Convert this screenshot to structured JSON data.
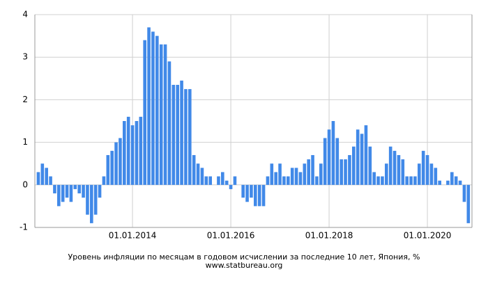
{
  "chart_data": {
    "type": "bar",
    "title": "Уровень инфляции по месяцам в годовом исчислении за последние 10 лет, Япония, %",
    "subtitle": "www.statbureau.org",
    "categories": [
      null,
      null,
      null,
      null,
      null,
      null,
      null,
      null,
      null,
      null,
      null,
      null,
      null,
      null,
      null,
      null,
      null,
      null,
      null,
      null,
      null,
      null,
      null,
      "01.01.2014",
      null,
      null,
      null,
      null,
      null,
      null,
      null,
      null,
      null,
      null,
      null,
      null,
      null,
      null,
      null,
      null,
      null,
      null,
      null,
      null,
      null,
      null,
      null,
      "01.01.2016",
      null,
      null,
      null,
      null,
      null,
      null,
      null,
      null,
      null,
      null,
      null,
      null,
      null,
      null,
      null,
      null,
      null,
      null,
      null,
      null,
      null,
      null,
      null,
      "01.01.2018",
      null,
      null,
      null,
      null,
      null,
      null,
      null,
      null,
      null,
      null,
      null,
      null,
      null,
      null,
      null,
      null,
      null,
      null,
      null,
      null,
      null,
      null,
      null,
      "01.01.2020",
      null,
      null,
      null,
      null,
      null,
      null,
      null,
      null,
      null,
      null
    ],
    "values": [
      0.3,
      0.5,
      0.4,
      0.2,
      -0.2,
      -0.5,
      -0.4,
      -0.3,
      -0.4,
      -0.1,
      -0.2,
      -0.3,
      -0.7,
      -0.9,
      -0.7,
      -0.3,
      0.2,
      0.7,
      0.8,
      1.0,
      1.1,
      1.5,
      1.6,
      1.4,
      1.5,
      1.6,
      3.4,
      3.7,
      3.6,
      3.5,
      3.3,
      3.3,
      2.9,
      2.35,
      2.35,
      2.45,
      2.25,
      2.25,
      0.7,
      0.5,
      0.4,
      0.2,
      0.2,
      0.0,
      0.2,
      0.3,
      0.1,
      -0.1,
      0.2,
      0.0,
      -0.3,
      -0.4,
      -0.3,
      -0.5,
      -0.5,
      -0.5,
      0.2,
      0.5,
      0.3,
      0.5,
      0.2,
      0.2,
      0.4,
      0.4,
      0.3,
      0.5,
      0.6,
      0.7,
      0.2,
      0.5,
      1.1,
      1.3,
      1.5,
      1.1,
      0.6,
      0.6,
      0.7,
      0.9,
      1.3,
      1.2,
      1.4,
      0.9,
      0.3,
      0.2,
      0.2,
      0.5,
      0.9,
      0.8,
      0.7,
      0.6,
      0.2,
      0.2,
      0.2,
      0.5,
      0.8,
      0.7,
      0.5,
      0.4,
      0.1,
      0.0,
      0.1,
      0.3,
      0.2,
      0.1,
      -0.4,
      -0.9
    ],
    "color": "#4189e8",
    "ylim": [
      -1,
      4
    ],
    "yticks": [
      -1,
      0,
      1,
      2,
      3,
      4
    ],
    "grid": true
  }
}
